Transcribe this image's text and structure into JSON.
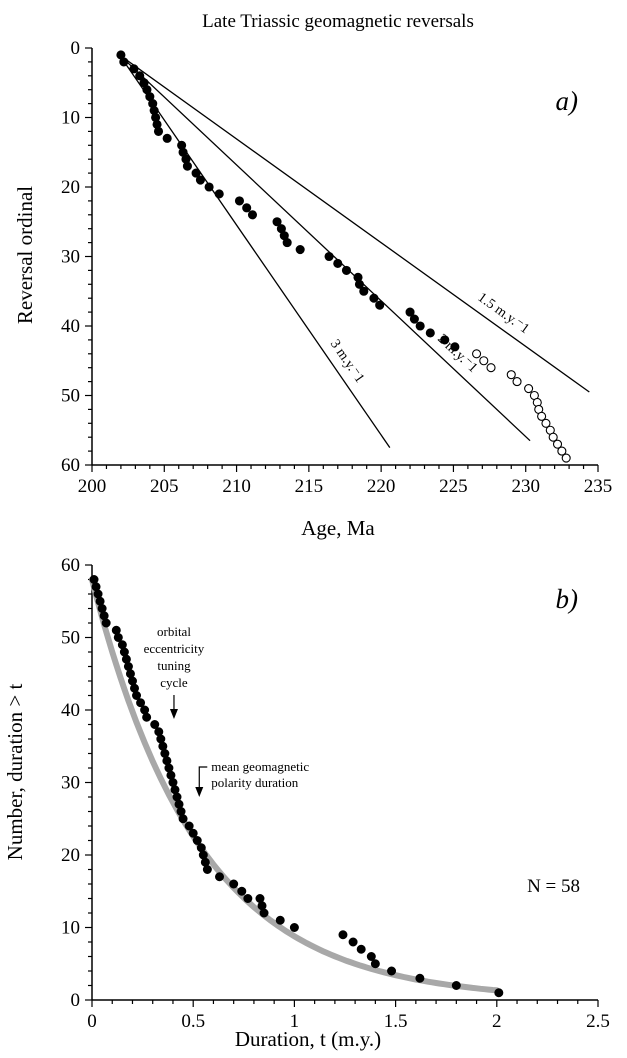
{
  "figure": {
    "title": "Late Triassic geomagnetic reversals"
  },
  "chart_data": [
    {
      "type": "scatter",
      "panel_label": "a)",
      "xlabel": "Age, Ma",
      "ylabel": "Reversal ordinal",
      "xlim": [
        200,
        235
      ],
      "ylim": [
        60,
        0
      ],
      "x_ticks": [
        "200",
        "205",
        "210",
        "215",
        "220",
        "225",
        "230",
        "235"
      ],
      "y_ticks": [
        "0",
        "10",
        "20",
        "30",
        "40",
        "50",
        "60"
      ],
      "grid": false,
      "lines": [
        {
          "label": "1.5 m.y.-1",
          "label_text": "1.5 m.y.⁻1",
          "x": [
            201.9,
            234.4
          ],
          "y": [
            1,
            49.5
          ]
        },
        {
          "label": "2 m.y.-1",
          "label_text": "2 m.y.⁻1",
          "x": [
            201.9,
            230.3
          ],
          "y": [
            1,
            56.5
          ]
        },
        {
          "label": "3 m.y.-1",
          "label_text": "3 m.y.⁻1",
          "x": [
            201.9,
            220.6
          ],
          "y": [
            1,
            57.5
          ]
        }
      ],
      "series": [
        {
          "marker": "filled",
          "points": [
            [
              202.0,
              1
            ],
            [
              202.2,
              2
            ],
            [
              202.9,
              3
            ],
            [
              203.3,
              4
            ],
            [
              203.6,
              5
            ],
            [
              203.8,
              6
            ],
            [
              204.0,
              7
            ],
            [
              204.2,
              8
            ],
            [
              204.3,
              9
            ],
            [
              204.4,
              10
            ],
            [
              204.5,
              11
            ],
            [
              204.6,
              12
            ],
            [
              205.2,
              13
            ],
            [
              206.2,
              14
            ],
            [
              206.3,
              15
            ],
            [
              206.5,
              16
            ],
            [
              206.6,
              17
            ],
            [
              207.2,
              18
            ],
            [
              207.5,
              19
            ],
            [
              208.1,
              20
            ],
            [
              208.8,
              21
            ],
            [
              210.2,
              22
            ],
            [
              210.7,
              23
            ],
            [
              211.1,
              24
            ],
            [
              212.8,
              25
            ],
            [
              213.1,
              26
            ],
            [
              213.3,
              27
            ],
            [
              213.5,
              28
            ],
            [
              214.4,
              29
            ],
            [
              216.4,
              30
            ],
            [
              217.0,
              31
            ],
            [
              217.6,
              32
            ],
            [
              218.4,
              33
            ],
            [
              218.5,
              34
            ],
            [
              218.8,
              35
            ],
            [
              219.5,
              36
            ],
            [
              219.9,
              37
            ],
            [
              222.0,
              38
            ],
            [
              222.3,
              39
            ],
            [
              222.7,
              40
            ],
            [
              223.4,
              41
            ],
            [
              224.4,
              42
            ],
            [
              225.1,
              43
            ]
          ]
        },
        {
          "marker": "open",
          "points": [
            [
              226.6,
              44
            ],
            [
              227.1,
              45
            ],
            [
              227.6,
              46
            ],
            [
              229.0,
              47
            ],
            [
              229.4,
              48
            ],
            [
              230.2,
              49
            ],
            [
              230.6,
              50
            ],
            [
              230.8,
              51
            ],
            [
              230.9,
              52
            ],
            [
              231.1,
              53
            ],
            [
              231.4,
              54
            ],
            [
              231.7,
              55
            ],
            [
              231.9,
              56
            ],
            [
              232.2,
              57
            ],
            [
              232.5,
              58
            ],
            [
              232.8,
              59
            ]
          ]
        }
      ]
    },
    {
      "type": "scatter",
      "panel_label": "b)",
      "xlabel": "Duration, t (m.y.)",
      "ylabel": "Number, duration > t",
      "xlim": [
        0,
        2.5
      ],
      "ylim": [
        0,
        60
      ],
      "x_ticks": [
        "0",
        "0.5",
        "1",
        "1.5",
        "2",
        "2.5"
      ],
      "y_ticks": [
        "0",
        "10",
        "20",
        "30",
        "40",
        "50",
        "60"
      ],
      "grid": false,
      "fit_curve": {
        "form": "exponential",
        "n0": 58,
        "mean": 0.53
      },
      "n_label": "N = 58",
      "annotations": [
        {
          "lines": [
            "orbital",
            "eccentricity",
            "tuning",
            "cycle"
          ],
          "arrow_x": 0.405
        },
        {
          "lines": [
            "mean geomagnetic",
            "polarity duration"
          ],
          "arrow_x": 0.53
        }
      ],
      "points": [
        [
          0.01,
          58
        ],
        [
          0.02,
          57
        ],
        [
          0.03,
          56
        ],
        [
          0.04,
          55
        ],
        [
          0.05,
          54
        ],
        [
          0.06,
          53
        ],
        [
          0.07,
          52
        ],
        [
          0.12,
          51
        ],
        [
          0.13,
          50
        ],
        [
          0.15,
          49
        ],
        [
          0.16,
          48
        ],
        [
          0.17,
          47
        ],
        [
          0.18,
          46
        ],
        [
          0.19,
          45
        ],
        [
          0.2,
          44
        ],
        [
          0.21,
          43
        ],
        [
          0.22,
          42
        ],
        [
          0.24,
          41
        ],
        [
          0.26,
          40
        ],
        [
          0.27,
          39
        ],
        [
          0.31,
          38
        ],
        [
          0.33,
          37
        ],
        [
          0.34,
          36
        ],
        [
          0.35,
          35
        ],
        [
          0.36,
          34
        ],
        [
          0.37,
          33
        ],
        [
          0.38,
          32
        ],
        [
          0.39,
          31
        ],
        [
          0.4,
          30
        ],
        [
          0.41,
          29
        ],
        [
          0.42,
          28
        ],
        [
          0.43,
          27
        ],
        [
          0.44,
          26
        ],
        [
          0.45,
          25
        ],
        [
          0.48,
          24
        ],
        [
          0.5,
          23
        ],
        [
          0.52,
          22
        ],
        [
          0.54,
          21
        ],
        [
          0.55,
          20
        ],
        [
          0.56,
          19
        ],
        [
          0.57,
          18
        ],
        [
          0.63,
          17
        ],
        [
          0.7,
          16
        ],
        [
          0.74,
          15
        ],
        [
          0.77,
          14
        ],
        [
          0.83,
          14
        ],
        [
          0.84,
          13
        ],
        [
          0.85,
          12
        ],
        [
          0.93,
          11
        ],
        [
          1.0,
          10
        ],
        [
          1.24,
          9
        ],
        [
          1.29,
          8
        ],
        [
          1.33,
          7
        ],
        [
          1.38,
          6
        ],
        [
          1.4,
          5
        ],
        [
          1.48,
          4
        ],
        [
          1.62,
          3
        ],
        [
          1.8,
          2
        ],
        [
          2.01,
          1
        ]
      ]
    }
  ]
}
